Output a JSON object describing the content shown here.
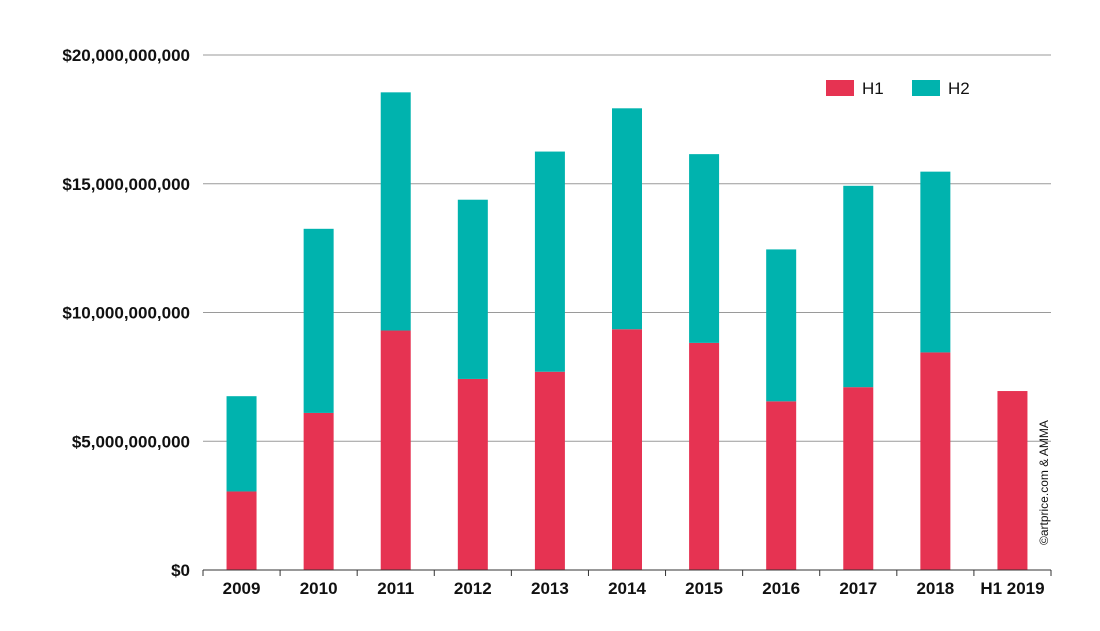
{
  "chart_data": {
    "type": "bar",
    "stacked": true,
    "title": "",
    "xlabel": "",
    "ylabel": "",
    "categories": [
      "2009",
      "2010",
      "2011",
      "2012",
      "2013",
      "2014",
      "2015",
      "2016",
      "2017",
      "2018",
      "H1 2019"
    ],
    "series": [
      {
        "name": "H1",
        "color": "#e63352",
        "values": [
          3050000000,
          6100000000,
          9300000000,
          7420000000,
          7700000000,
          9350000000,
          8820000000,
          6550000000,
          7100000000,
          8450000000,
          6950000000
        ]
      },
      {
        "name": "H2",
        "color": "#00b3ae",
        "values": [
          3700000000,
          7150000000,
          9250000000,
          6960000000,
          8550000000,
          8580000000,
          7330000000,
          5900000000,
          7820000000,
          7020000000,
          0
        ]
      }
    ],
    "ylim": [
      0,
      20000000000
    ],
    "yticks": [
      0,
      5000000000,
      10000000000,
      15000000000,
      20000000000
    ],
    "ytick_labels": [
      "$0",
      "$5,000,000,000",
      "$10,000,000,000",
      "$15,000,000,000",
      "$20,000,000,000"
    ],
    "grid": true,
    "legend_position": "top-right",
    "credit": "©artprice.com & AMMA"
  }
}
